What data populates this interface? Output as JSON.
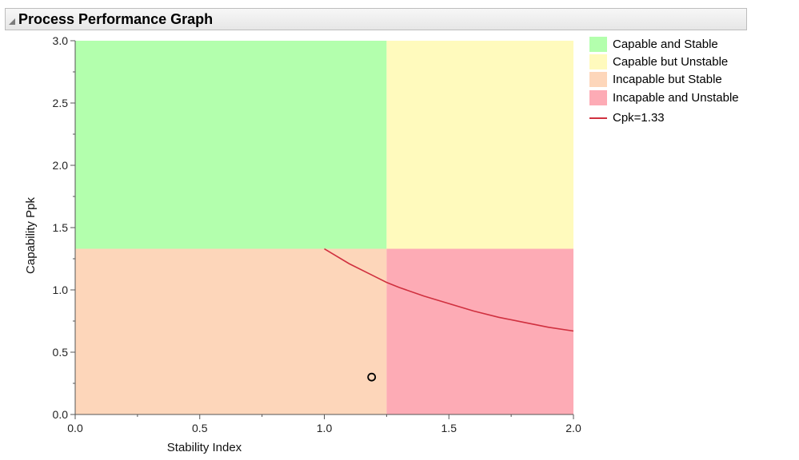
{
  "header": {
    "title": "Process Performance Graph"
  },
  "chart_data": {
    "type": "scatter",
    "title": "Process Performance Graph",
    "xlabel": "Stability Index",
    "ylabel": "Capability Ppk",
    "xlim": [
      0.0,
      2.0
    ],
    "ylim": [
      0.0,
      3.0
    ],
    "x_ticks": [
      "0.0",
      "0.5",
      "1.0",
      "1.5",
      "2.0"
    ],
    "y_ticks": [
      "0.0",
      "0.5",
      "1.0",
      "1.5",
      "2.0",
      "2.5",
      "3.0"
    ],
    "grid": false,
    "legend_position": "right",
    "stability_threshold": 1.25,
    "capability_threshold": 1.33,
    "regions": [
      {
        "name": "Capable and Stable",
        "color": "#b3ffad",
        "x": [
          0.0,
          1.25
        ],
        "y": [
          1.33,
          3.0
        ]
      },
      {
        "name": "Capable but Unstable",
        "color": "#fffabd",
        "x": [
          1.25,
          2.0
        ],
        "y": [
          1.33,
          3.0
        ]
      },
      {
        "name": "Incapable but Stable",
        "color": "#fdd6ba",
        "x": [
          0.0,
          1.25
        ],
        "y": [
          0.0,
          1.33
        ]
      },
      {
        "name": "Incapable and Unstable",
        "color": "#fdabb5",
        "x": [
          1.25,
          2.0
        ],
        "y": [
          0.0,
          1.33
        ]
      }
    ],
    "curve": {
      "name": "Cpk=1.33",
      "color": "#d0303f",
      "x": [
        1.0,
        1.1,
        1.2,
        1.25,
        1.3,
        1.4,
        1.5,
        1.6,
        1.7,
        1.8,
        1.9,
        2.0
      ],
      "y": [
        1.33,
        1.21,
        1.11,
        1.06,
        1.02,
        0.95,
        0.89,
        0.83,
        0.78,
        0.74,
        0.7,
        0.67
      ]
    },
    "points": [
      {
        "x": 1.19,
        "y": 0.3
      }
    ]
  },
  "legend": {
    "items": [
      {
        "label": "Capable and Stable",
        "color": "#b3ffad",
        "kind": "swatch"
      },
      {
        "label": "Capable but Unstable",
        "color": "#fffabd",
        "kind": "swatch"
      },
      {
        "label": "Incapable but Stable",
        "color": "#fdd6ba",
        "kind": "swatch"
      },
      {
        "label": "Incapable and Unstable",
        "color": "#fdabb5",
        "kind": "swatch"
      },
      {
        "label": "Cpk=1.33",
        "color": "#d0303f",
        "kind": "line"
      }
    ]
  }
}
